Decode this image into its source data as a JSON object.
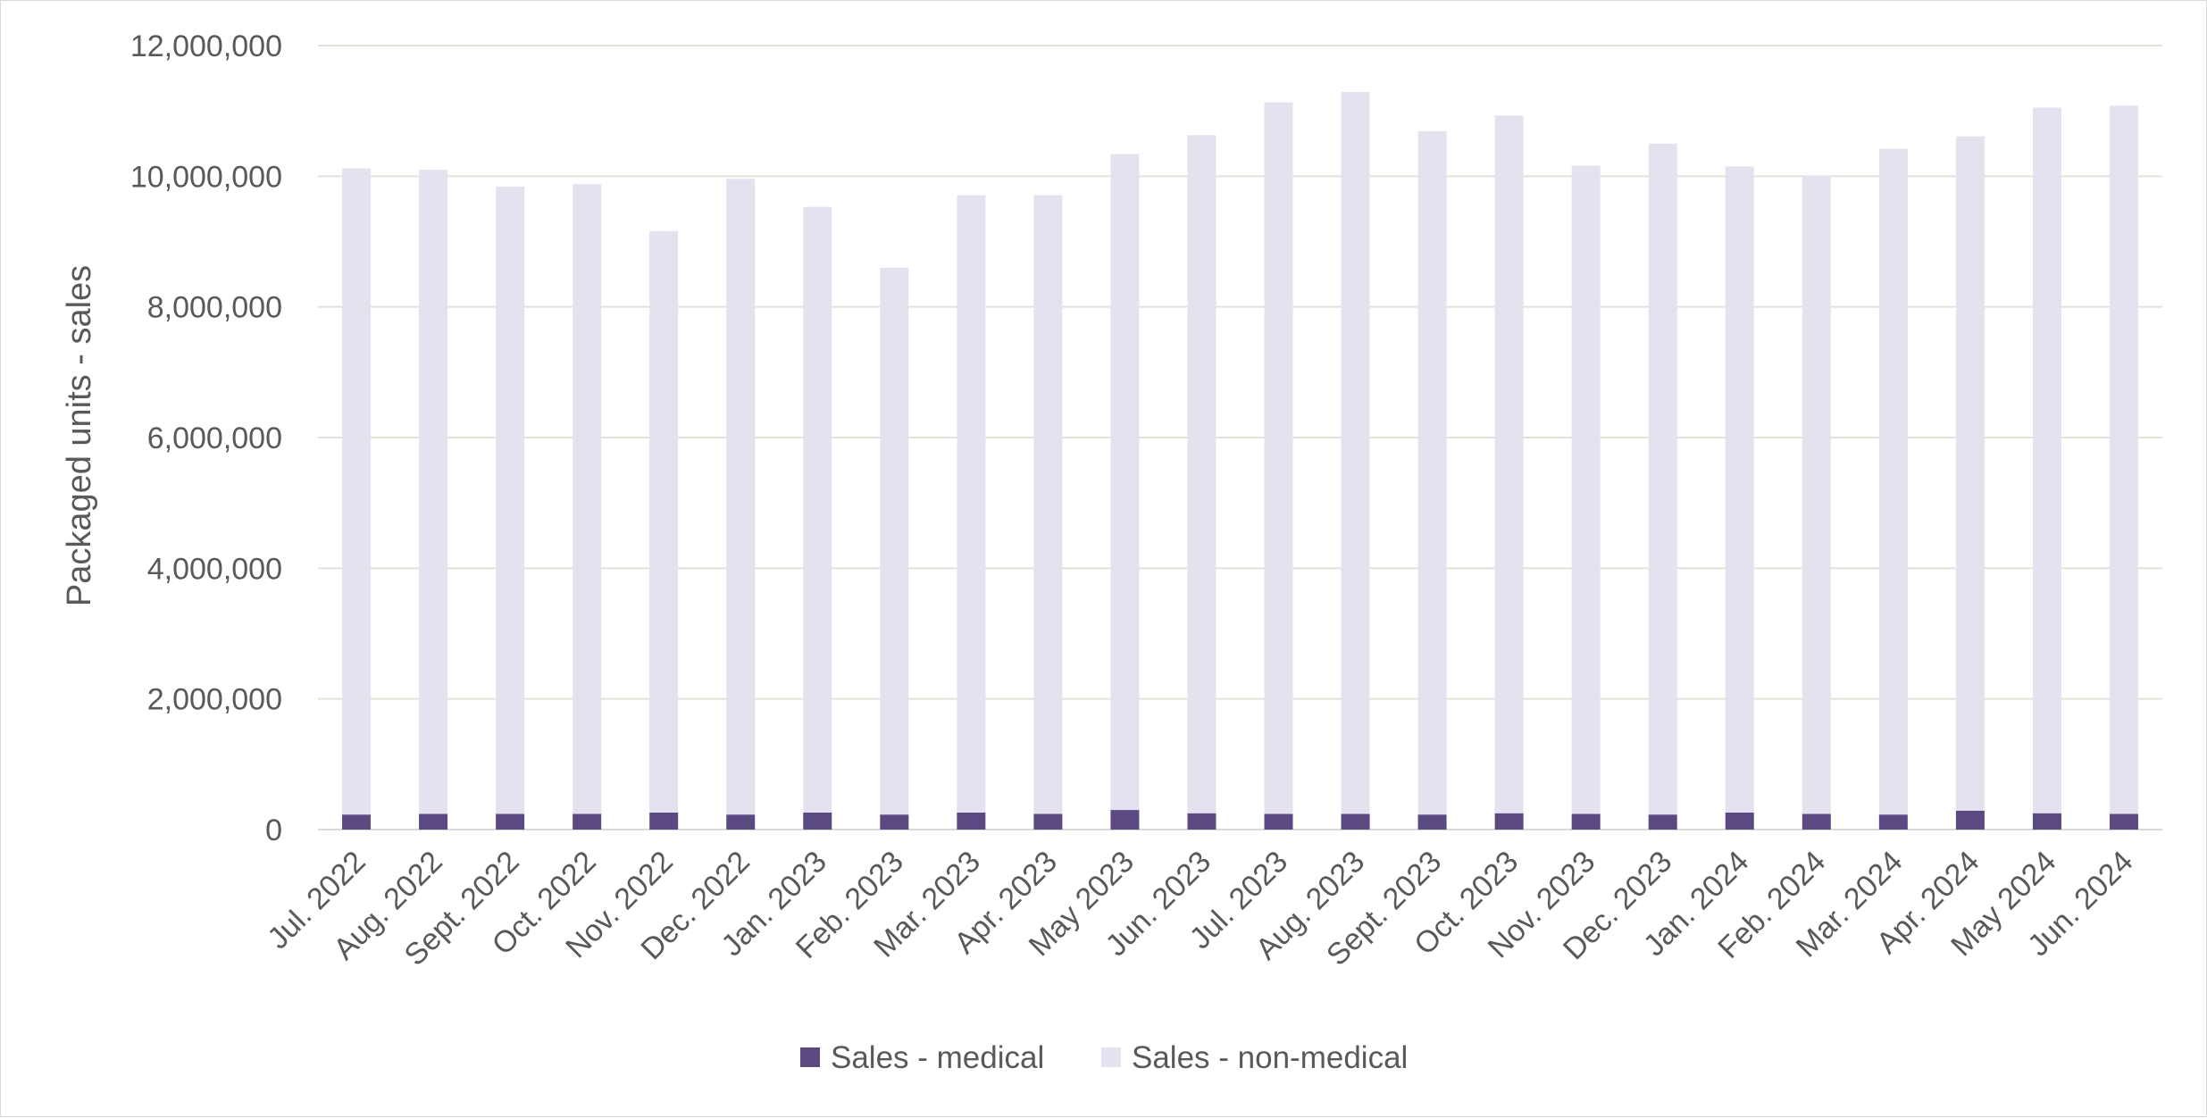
{
  "chart_data": {
    "type": "bar",
    "stacked": true,
    "title": "",
    "xlabel": "",
    "ylabel": "Packaged units - sales",
    "ylim": [
      0,
      12000000
    ],
    "yticks": [
      0,
      2000000,
      4000000,
      6000000,
      8000000,
      10000000,
      12000000
    ],
    "ytick_labels": [
      "0",
      "2,000,000",
      "4,000,000",
      "6,000,000",
      "8,000,000",
      "10,000,000",
      "12,000,000"
    ],
    "grid": true,
    "legend_position": "bottom",
    "categories": [
      "Jul. 2022",
      "Aug. 2022",
      "Sept. 2022",
      "Oct. 2022",
      "Nov. 2022",
      "Dec. 2022",
      "Jan. 2023",
      "Feb. 2023",
      "Mar. 2023",
      "Apr. 2023",
      "May 2023",
      "Jun. 2023",
      "Jul. 2023",
      "Aug. 2023",
      "Sept. 2023",
      "Oct. 2023",
      "Nov. 2023",
      "Dec. 2023",
      "Jan. 2024",
      "Feb. 2024",
      "Mar. 2024",
      "Apr. 2024",
      "May 2024",
      "Jun. 2024"
    ],
    "series": [
      {
        "name": "Sales - medical",
        "color": "#5b4a82",
        "values": [
          230000,
          240000,
          240000,
          240000,
          260000,
          230000,
          260000,
          230000,
          260000,
          240000,
          300000,
          250000,
          240000,
          240000,
          230000,
          250000,
          240000,
          230000,
          260000,
          240000,
          230000,
          290000,
          250000,
          240000
        ]
      },
      {
        "name": "Sales - non-medical",
        "color": "#e6e1ef",
        "values": [
          9890000,
          9860000,
          9600000,
          9640000,
          8900000,
          9730000,
          9270000,
          8370000,
          9450000,
          9470000,
          10040000,
          10380000,
          10890000,
          11050000,
          10460000,
          10680000,
          9920000,
          10270000,
          9890000,
          9770000,
          10190000,
          10320000,
          10800000,
          10840000
        ]
      }
    ]
  }
}
